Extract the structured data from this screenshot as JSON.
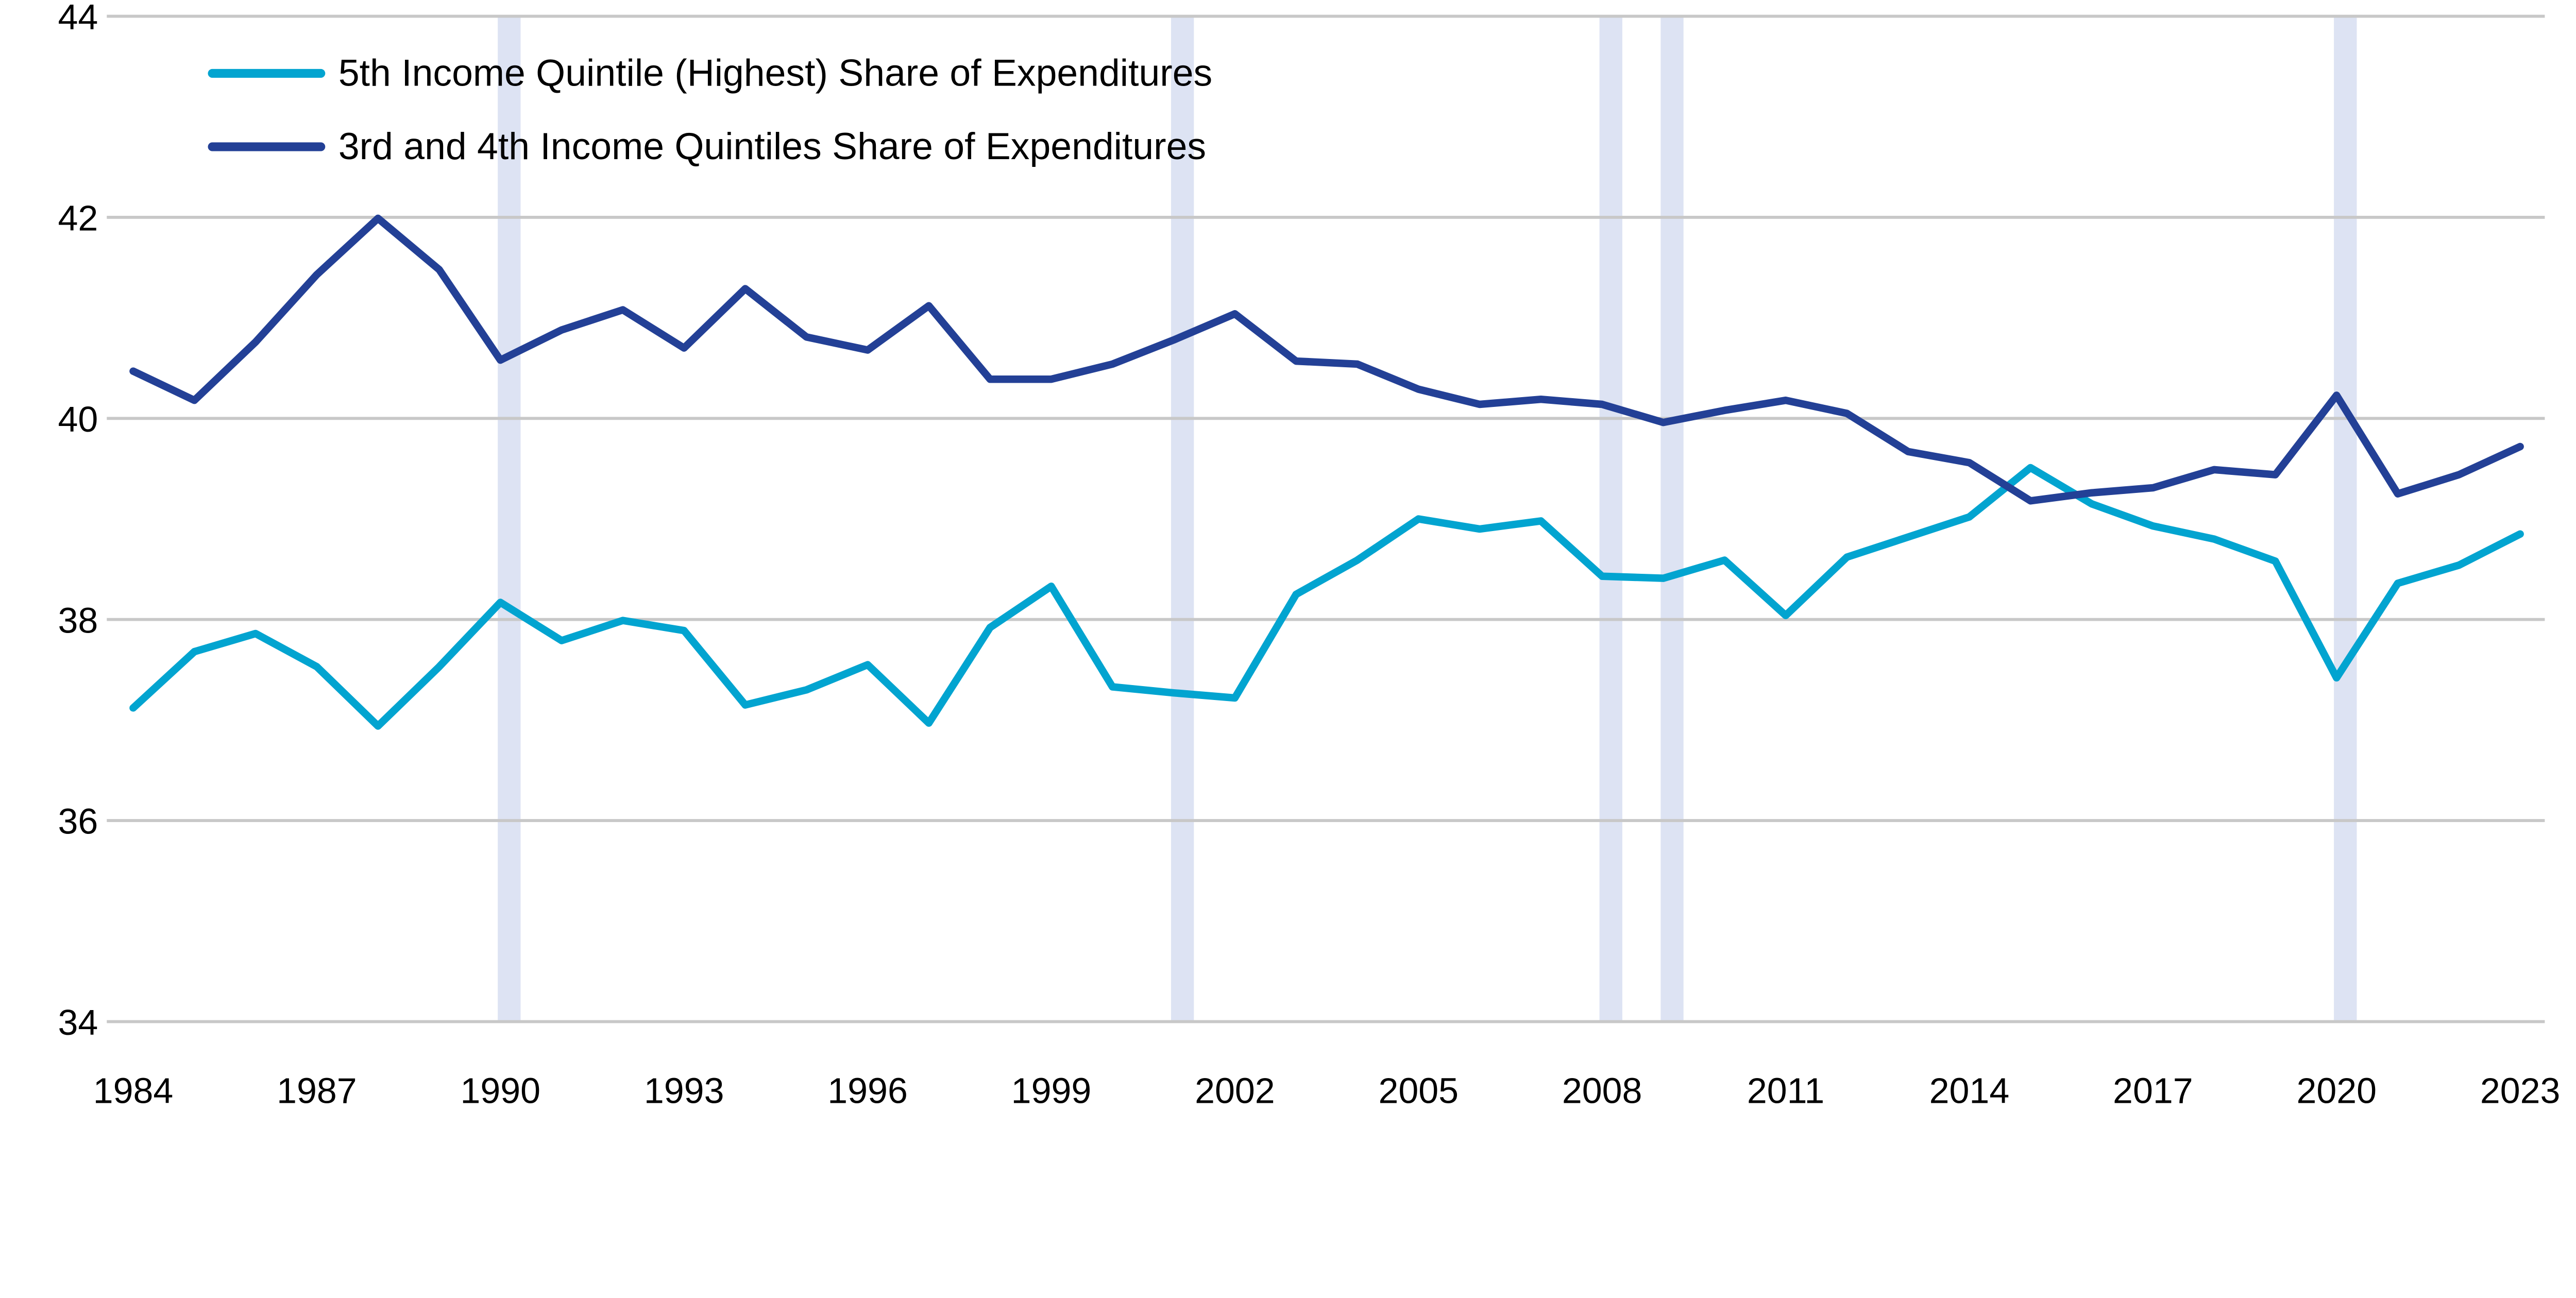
{
  "chart_data": {
    "type": "line",
    "title": "",
    "xlabel": "",
    "ylabel": "",
    "ylim": [
      34,
      44
    ],
    "yticks": [
      34,
      36,
      38,
      40,
      42,
      44
    ],
    "xlim": [
      1984,
      2023
    ],
    "xticks": [
      1984,
      1987,
      1990,
      1993,
      1996,
      1999,
      2002,
      2005,
      2008,
      2011,
      2014,
      2017,
      2020,
      2023
    ],
    "grid": "horizontal",
    "legend_placement": "top-left",
    "recession_years": [
      1990,
      2001,
      2008,
      2009,
      2020
    ],
    "colors": {
      "band": "#dde3f3",
      "grid": "#c8c8c8"
    },
    "x": [
      1984,
      1985,
      1986,
      1987,
      1988,
      1989,
      1990,
      1991,
      1992,
      1993,
      1994,
      1995,
      1996,
      1997,
      1998,
      1999,
      2000,
      2001,
      2002,
      2003,
      2004,
      2005,
      2006,
      2007,
      2008,
      2009,
      2010,
      2011,
      2012,
      2013,
      2014,
      2015,
      2016,
      2017,
      2018,
      2019,
      2020,
      2021,
      2022,
      2023
    ],
    "series": [
      {
        "name": "5th Income Quintile (Highest) Share of Expenditures",
        "color": "#02a4d0",
        "values": [
          37.12,
          37.68,
          37.86,
          37.53,
          36.94,
          37.53,
          38.17,
          37.79,
          37.99,
          37.89,
          37.15,
          37.3,
          37.55,
          36.97,
          37.92,
          38.33,
          37.33,
          37.27,
          37.22,
          38.25,
          38.59,
          39.0,
          38.9,
          38.98,
          38.43,
          38.41,
          38.59,
          38.04,
          38.62,
          38.82,
          39.02,
          39.51,
          39.15,
          38.93,
          38.8,
          38.58,
          37.42,
          38.36,
          38.54,
          38.85
        ]
      },
      {
        "name": "3rd and 4th Income Quintiles Share of Expenditures",
        "color": "#234096",
        "values": [
          40.47,
          40.18,
          40.76,
          41.43,
          41.99,
          41.48,
          40.58,
          40.88,
          41.08,
          40.7,
          41.29,
          40.81,
          40.68,
          41.12,
          40.39,
          40.39,
          40.54,
          40.78,
          41.04,
          40.57,
          40.54,
          40.29,
          40.14,
          40.19,
          40.14,
          39.96,
          40.08,
          40.18,
          40.05,
          39.67,
          39.56,
          39.18,
          39.26,
          39.31,
          39.49,
          39.44,
          40.23,
          39.25,
          39.44,
          39.72
        ]
      }
    ]
  }
}
